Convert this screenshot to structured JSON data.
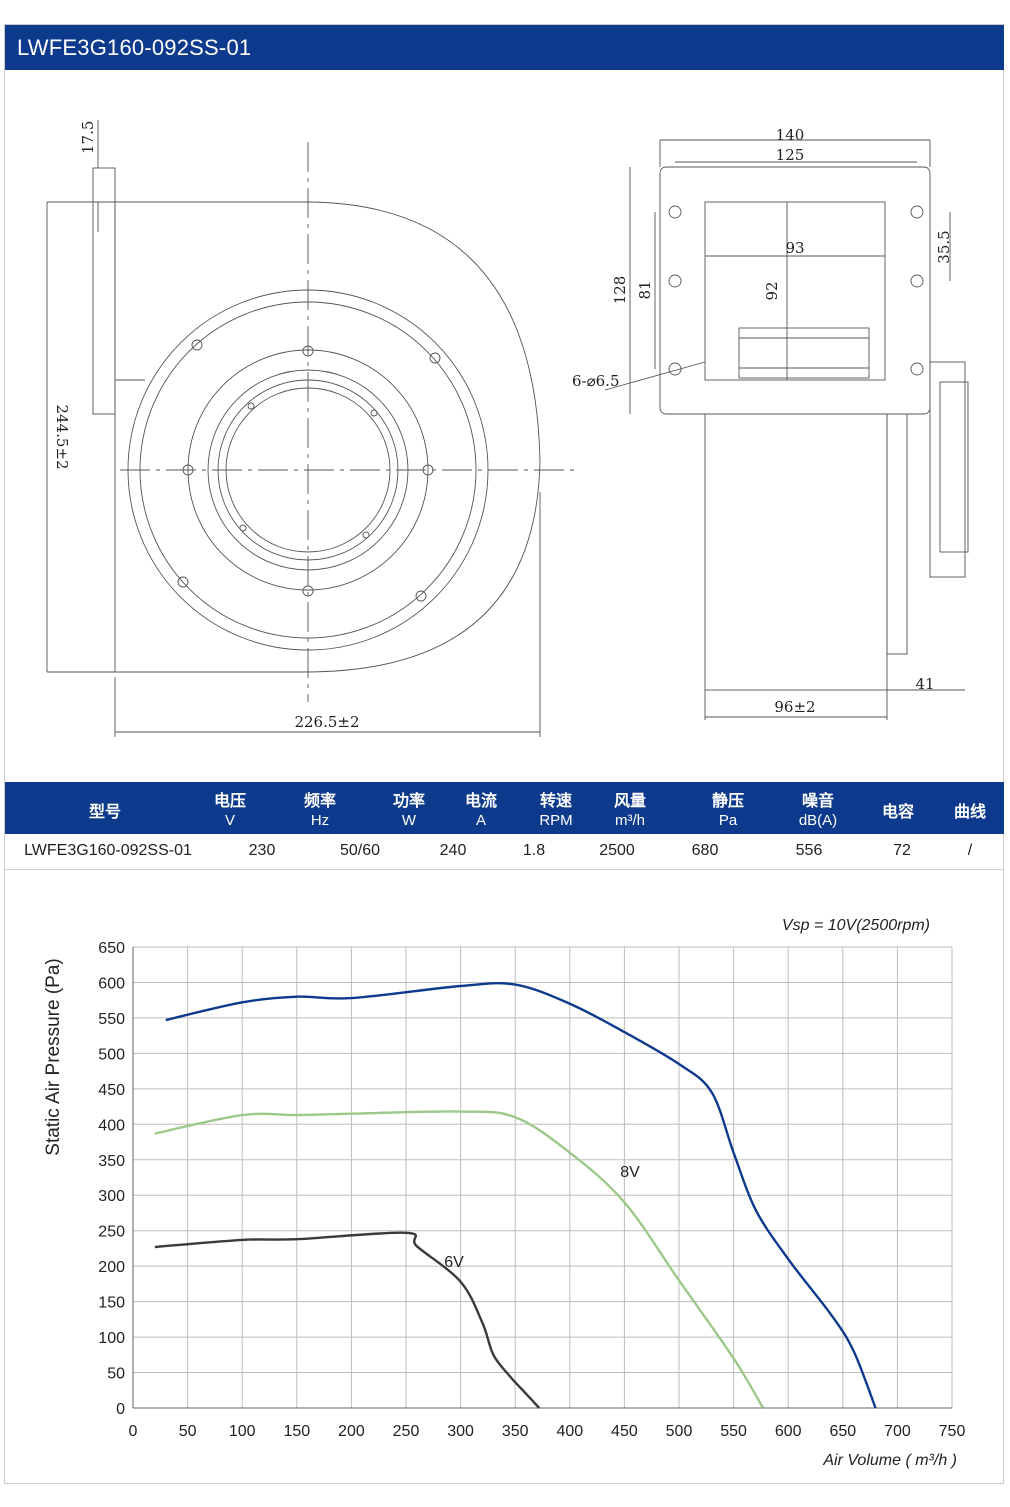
{
  "title": "LWFE3G160-092SS-01",
  "drawing": {
    "dims": {
      "d_17_5": "17.5",
      "d_244_5": "244.5±2",
      "d_226_5": "226.5±2",
      "d_140": "140",
      "d_125": "125",
      "d_93": "93",
      "d_92": "92",
      "d_35_5": "35.5",
      "d_128": "128",
      "d_81": "81",
      "d_holes": "6-⌀6.5",
      "d_41": "41",
      "d_96": "96±2"
    }
  },
  "spec": {
    "headers": [
      {
        "l1": "型号",
        "l2": ""
      },
      {
        "l1": "电压",
        "l2": "V"
      },
      {
        "l1": "频率",
        "l2": "Hz"
      },
      {
        "l1": "功率",
        "l2": "W"
      },
      {
        "l1": "电流",
        "l2": "A"
      },
      {
        "l1": "转速",
        "l2": "RPM"
      },
      {
        "l1": "风量",
        "l2": "m³/h"
      },
      {
        "l1": "静压",
        "l2": "Pa"
      },
      {
        "l1": "噪音",
        "l2": "dB(A)"
      },
      {
        "l1": "电容",
        "l2": ""
      },
      {
        "l1": "曲线",
        "l2": ""
      }
    ],
    "row": [
      "LWFE3G160-092SS-01",
      "230",
      "50/60",
      "240",
      "1.8",
      "2500",
      "680",
      "556",
      "72",
      "/"
    ]
  },
  "chart_data": {
    "type": "line",
    "title": "",
    "annotation": "Vsp = 10V(2500rpm)",
    "xlabel": "Air Volume ( m³/h )",
    "ylabel": "Static Air Pressure  (Pa)",
    "xlim": [
      0,
      750
    ],
    "ylim": [
      0,
      650
    ],
    "xticks": [
      0,
      50,
      100,
      150,
      200,
      250,
      300,
      350,
      400,
      450,
      500,
      550,
      600,
      650,
      700,
      750
    ],
    "yticks": [
      0,
      50,
      100,
      150,
      200,
      250,
      300,
      350,
      400,
      450,
      500,
      550,
      600,
      650
    ],
    "grid": true,
    "series": [
      {
        "name": "",
        "color": "#0d3a8c",
        "x": [
          30,
          100,
          150,
          200,
          300,
          350,
          400,
          450,
          500,
          530,
          550,
          570,
          600,
          640,
          660,
          680
        ],
        "y": [
          547,
          572,
          580,
          578,
          595,
          597,
          570,
          530,
          485,
          445,
          360,
          280,
          210,
          130,
          80,
          0
        ]
      },
      {
        "name": "8V",
        "color": "#9cc98a",
        "x": [
          20,
          100,
          150,
          200,
          300,
          350,
          400,
          450,
          500,
          550,
          577
        ],
        "y": [
          387,
          413,
          413,
          415,
          418,
          410,
          360,
          290,
          180,
          70,
          0
        ]
      },
      {
        "name": "6V",
        "color": "#3a3a3a",
        "x": [
          20,
          100,
          150,
          250,
          260,
          300,
          320,
          330,
          345,
          360,
          372
        ],
        "y": [
          227,
          237,
          238,
          247,
          228,
          178,
          120,
          75,
          45,
          20,
          0
        ]
      }
    ]
  }
}
